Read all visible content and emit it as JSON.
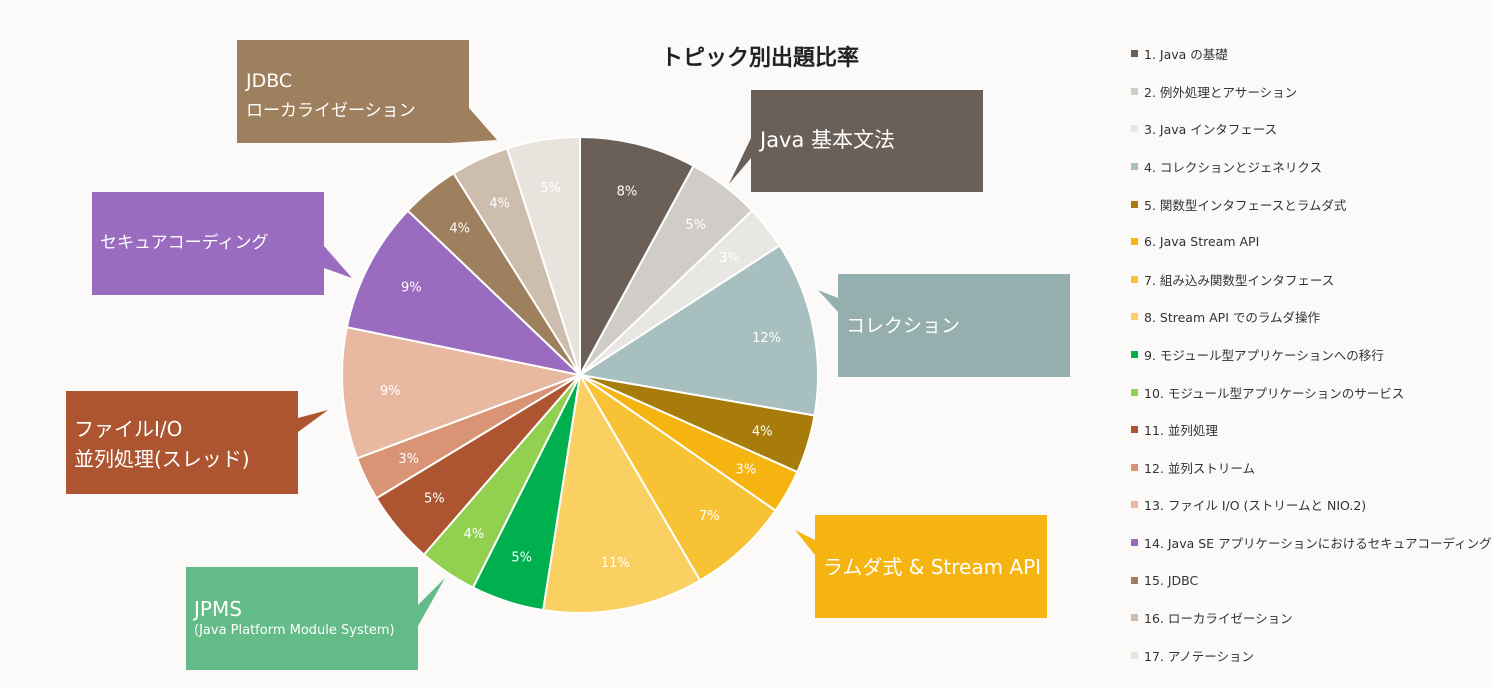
{
  "chart_data": {
    "type": "pie",
    "title": "トピック別出題比率",
    "slices": [
      {
        "label": "1. Java の基礎",
        "value": 8,
        "display": "8%",
        "color": "#6b6058"
      },
      {
        "label": "2. 例外処理とアサーション",
        "value": 5,
        "display": "5%",
        "color": "#d0ccc8"
      },
      {
        "label": "3. Java インタフェース",
        "value": 3,
        "display": "3%",
        "color": "#e9e7e4"
      },
      {
        "label": "4. コレクションとジェネリクス",
        "value": 12,
        "display": "12%",
        "color": "#a8bfbf"
      },
      {
        "label": "5. 関数型インタフェースとラムダ式",
        "value": 4,
        "display": "4%",
        "color": "#a87c0a"
      },
      {
        "label": "6. Java Stream API",
        "value": 3,
        "display": "3%",
        "color": "#f5b410"
      },
      {
        "label": "7. 組み込み関数型インタフェース",
        "value": 7,
        "display": "7%",
        "color": "#f8c235"
      },
      {
        "label": "8. Stream API でのラムダ操作",
        "value": 11,
        "display": "11%",
        "color": "#fbd062"
      },
      {
        "label": "9. モジュール型アプリケーションへの移行",
        "value": 5,
        "display": "5%",
        "color": "#00b04f"
      },
      {
        "label": "10. モジュール型アプリケーションのサービス",
        "value": 4,
        "display": "4%",
        "color": "#92d050"
      },
      {
        "label": "11. 並列処理",
        "value": 5,
        "display": "5%",
        "color": "#ad5530"
      },
      {
        "label": "12. 並列ストリーム",
        "value": 3,
        "display": "3%",
        "color": "#d99475"
      },
      {
        "label": "13. ファイル I/O (ストリームと NIO.2)",
        "value": 9,
        "display": "9%",
        "color": "#e8b9a0"
      },
      {
        "label": "14. Java SE アプリケーションにおけるセキュアコーディング",
        "value": 9,
        "display": "9%",
        "color": "#9a6cbf"
      },
      {
        "label": "15. JDBC",
        "value": 4,
        "display": "4%",
        "color": "#9e7f5e"
      },
      {
        "label": "16. ローカライゼーション",
        "value": 4,
        "display": "4%",
        "color": "#ccbdad"
      },
      {
        "label": "17. アノテーション",
        "value": 5,
        "display": "5%",
        "color": "#e8e3dd"
      }
    ],
    "legend_position": "right"
  },
  "callouts": [
    {
      "id": "jdbc",
      "line1": "JDBC",
      "line2": "ローカライゼーション",
      "color": "#9e7f5e"
    },
    {
      "id": "java",
      "line1": "Java 基本文法",
      "color": "#6b6058"
    },
    {
      "id": "secure",
      "line1": "セキュアコーディング",
      "color": "#9a6cbf"
    },
    {
      "id": "collection",
      "line1": "コレクション",
      "color": "#95afae"
    },
    {
      "id": "file",
      "line1": "ファイルI/O",
      "line2": "並列処理(スレッド)",
      "color": "#ad5530"
    },
    {
      "id": "lambda",
      "line1": "ラムダ式 & Stream API",
      "color": "#f5b410"
    },
    {
      "id": "jpms",
      "line1": "JPMS",
      "sub": "(Java Platform Module System)",
      "color": "#63bb88"
    }
  ]
}
